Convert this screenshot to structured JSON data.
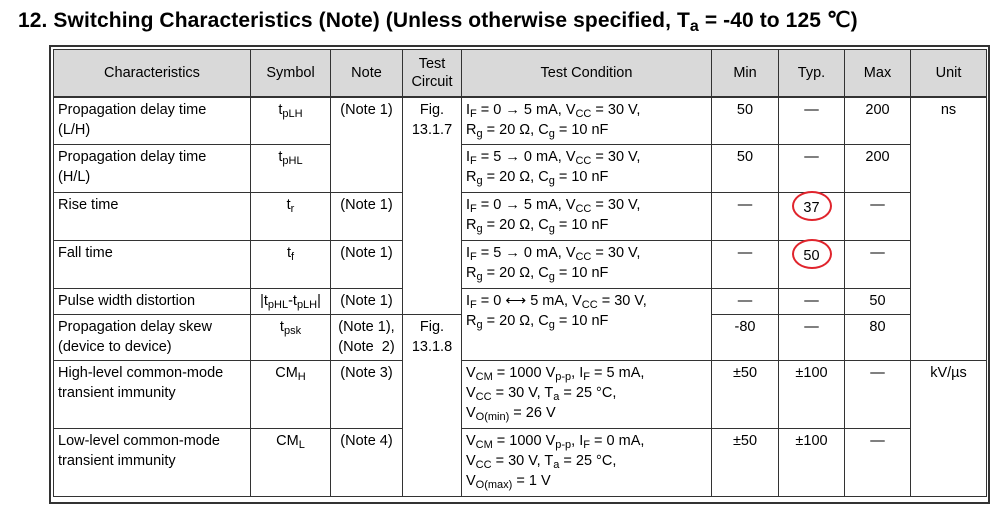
{
  "title": {
    "prefix": "12. Switching Characteristics (Note) (Unless otherwise specified, T",
    "sub": "a",
    "suffix": " = -40 to 125 ℃)"
  },
  "headers": {
    "characteristics": "Characteristics",
    "symbol": "Symbol",
    "note": "Note",
    "test_circuit_1": "Test",
    "test_circuit_2": "Circuit",
    "test_condition": "Test Condition",
    "min": "Min",
    "typ": "Typ.",
    "max": "Max",
    "unit": "Unit"
  },
  "sym": {
    "t": "t",
    "pLH": "pLH",
    "pHL": "pHL",
    "r": "r",
    "f": "f",
    "psk": "psk",
    "pw_a": "|t",
    "pw_b": "pHL",
    "pw_c": "-t",
    "pw_d": "pLH",
    "pw_e": "|",
    "CM": "CM",
    "H": "H",
    "L": "L"
  },
  "cond": {
    "I": "I",
    "F": "F",
    "V": "V",
    "CC": "CC",
    "R": "R",
    "g": "g",
    "C": "C",
    "T": "T",
    "a": "a",
    "CMsub": "CM",
    "pp": "p-p",
    "omin": "O(min)",
    "omax": "O(max)",
    "if_0_5": " = 0 → 5 mA, ",
    "if_5_0": " = 5 → 0 mA, ",
    "if_bi": " = 0 ⟷ 5 mA, ",
    "vcc30_comma": " = 30 V,",
    "vcc30_sp": " = 30 V, ",
    "rg": " = 20 Ω, ",
    "cg": " = 10 nF",
    "vcm": " = 1000 V",
    "comma_sp": ", ",
    "if5": " = 5 mA,",
    "if0": " = 0 mA,",
    "ta25": " = 25 °C,",
    "vo26": " = 26 V",
    "vo1": " = 1 V"
  },
  "rows": [
    {
      "name_1": "Propagation delay time",
      "name_2": "(L/H)",
      "note": "(Note 1)",
      "circuit_1": "Fig.",
      "circuit_2": "13.1.7",
      "min": "50",
      "typ": "—",
      "max": "200",
      "unit": "ns"
    },
    {
      "name_1": "Propagation delay time",
      "name_2": "(H/L)",
      "min": "50",
      "typ": "—",
      "max": "200"
    },
    {
      "name": "Rise time",
      "note": "(Note 1)",
      "min": "—",
      "typ": "37",
      "max": "—"
    },
    {
      "name": "Fall time",
      "note": "(Note 1)",
      "min": "—",
      "typ": "50",
      "max": "—"
    },
    {
      "name": "Pulse width distortion",
      "note": "(Note 1)",
      "min": "—",
      "typ": "—",
      "max": "50"
    },
    {
      "name_1": "Propagation delay skew",
      "name_2": "(device to device)",
      "note_1": "(Note 1),",
      "note_2": "(Note  2)",
      "min": "-80",
      "typ": "—",
      "max": "80"
    },
    {
      "name_1": "High-level common-mode",
      "name_2": "transient immunity",
      "note": "(Note 3)",
      "circuit_1": "Fig.",
      "circuit_2": "13.1.8",
      "min": "±50",
      "typ": "±100",
      "max": "—",
      "unit": "kV/µs"
    },
    {
      "name_1": "Low-level common-mode",
      "name_2": "transient immunity",
      "note": "(Note 4)",
      "min": "±50",
      "typ": "±100",
      "max": "—"
    }
  ],
  "annotation_color": "#e0242c"
}
